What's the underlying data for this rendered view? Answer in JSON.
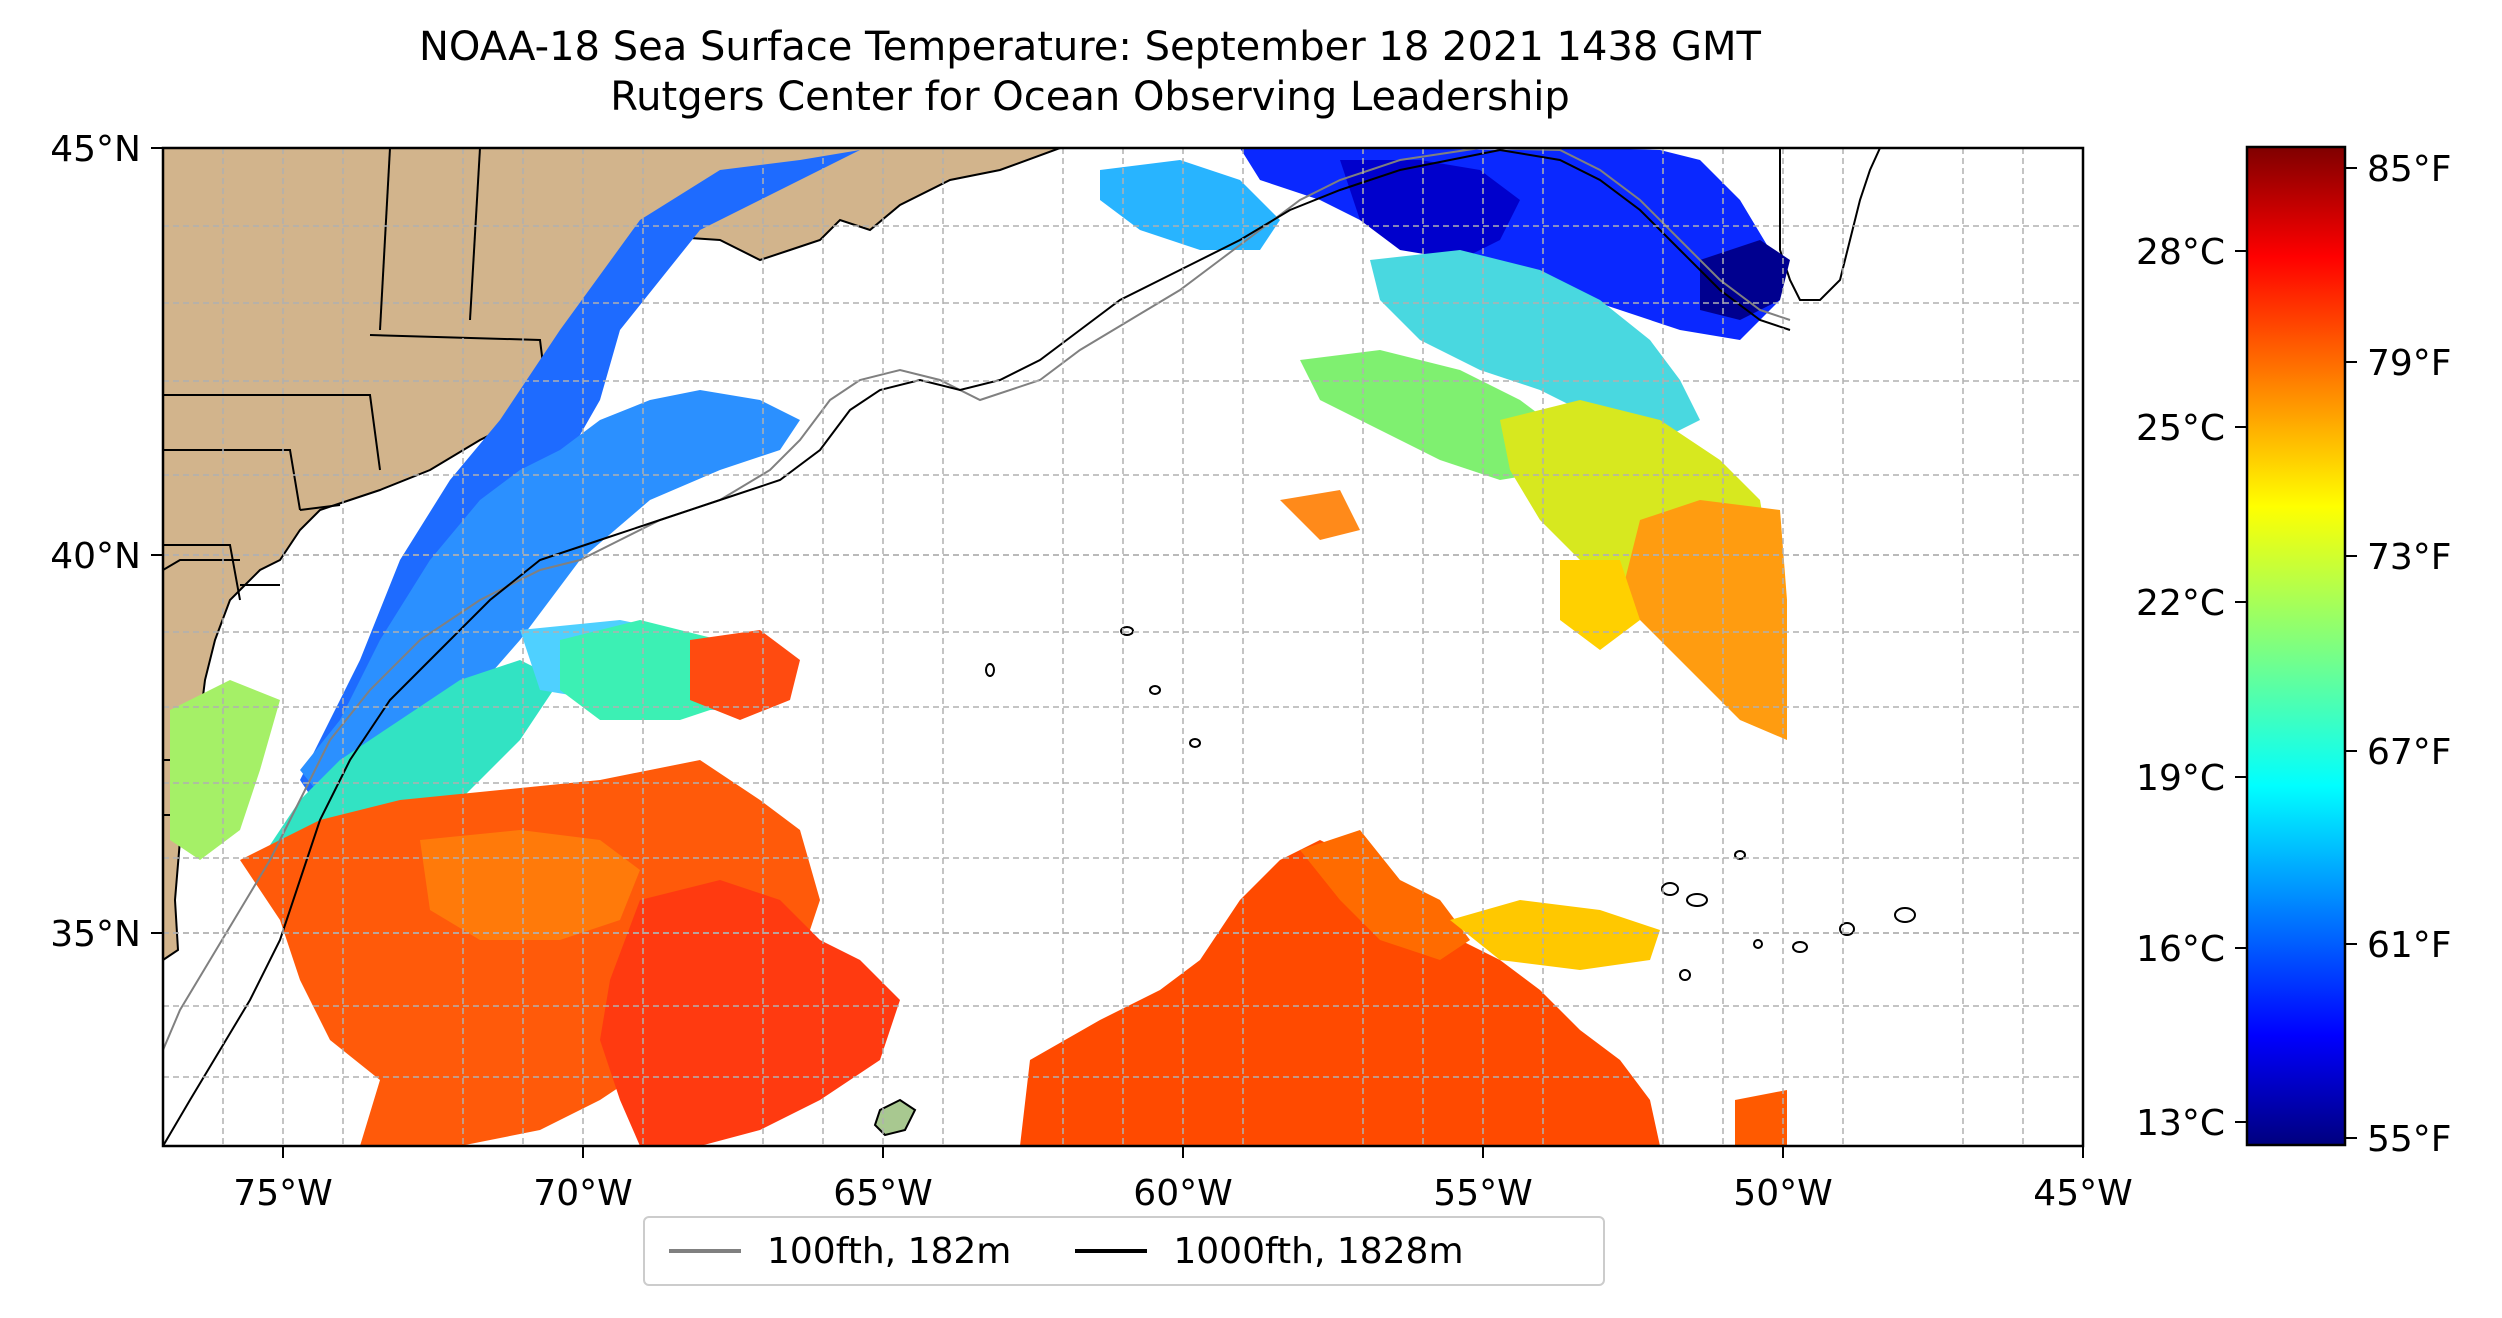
{
  "title": {
    "line1": "NOAA-18 Sea Surface Temperature: September 18 2021 1438 GMT",
    "line2": "Rutgers Center for Ocean Observing Leadership"
  },
  "map": {
    "lon_range": [
      -77,
      -45
    ],
    "lat_range": [
      32.4,
      45
    ],
    "lon_ticks": [
      "75°W",
      "70°W",
      "65°W",
      "60°W",
      "55°W",
      "50°W",
      "45°W"
    ],
    "lat_ticks": [
      "45°N",
      "40°N",
      "35°N"
    ],
    "grid": true,
    "land_color": "#d2b48c",
    "no_data_color": "#ffffff",
    "sst_data_extent_lon": [
      -77,
      -50
    ]
  },
  "colorbar": {
    "colormap": "jet",
    "celsius_ticks": [
      "28°C",
      "25°C",
      "22°C",
      "19°C",
      "16°C",
      "13°C"
    ],
    "fahrenheit_ticks": [
      "85°F",
      "79°F",
      "73°F",
      "67°F",
      "61°F",
      "55°F"
    ],
    "colors": [
      "#00007f",
      "#0000ff",
      "#007fff",
      "#00ffff",
      "#7fff7f",
      "#ffff00",
      "#ff7f00",
      "#ff0000",
      "#7f0000"
    ]
  },
  "legend": {
    "items": [
      {
        "label": "100fth, 182m",
        "color": "#808080"
      },
      {
        "label": "1000fth, 1828m",
        "color": "#000000"
      }
    ]
  }
}
